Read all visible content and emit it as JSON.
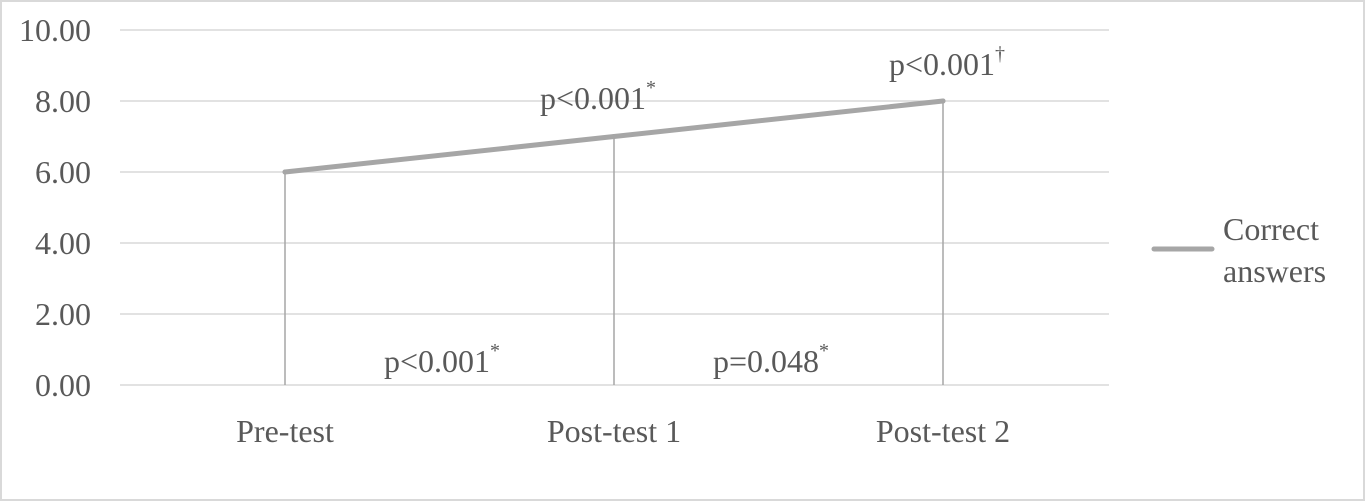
{
  "chart_data": {
    "type": "line",
    "title": "",
    "xlabel": "",
    "ylabel": "",
    "categories": [
      "Pre-test",
      "Post-test 1",
      "Post-test 2"
    ],
    "ylim": [
      0,
      10
    ],
    "y_ticks": [
      0,
      2,
      4,
      6,
      8,
      10
    ],
    "y_tick_labels": [
      "0.00",
      "2.00",
      "4.00",
      "6.00",
      "8.00",
      "10.00"
    ],
    "grid": true,
    "legend": "right",
    "series": [
      {
        "name": "Correct answers",
        "values": [
          6,
          7,
          8
        ],
        "color": "#a6a6a6"
      }
    ],
    "annotations": [
      {
        "id": "ann-post1-top",
        "text": "p<0.001",
        "sup": "*"
      },
      {
        "id": "ann-post2-top",
        "text": "p<0.001",
        "sup": "†"
      },
      {
        "id": "ann-pre-post1-bottom",
        "text": "p<0.001",
        "sup": "*"
      },
      {
        "id": "ann-post1-post2-bottom",
        "text": "p=0.048",
        "sup": "*"
      }
    ]
  },
  "legend": {
    "label_line1": "Correct",
    "label_line2": "answers"
  }
}
